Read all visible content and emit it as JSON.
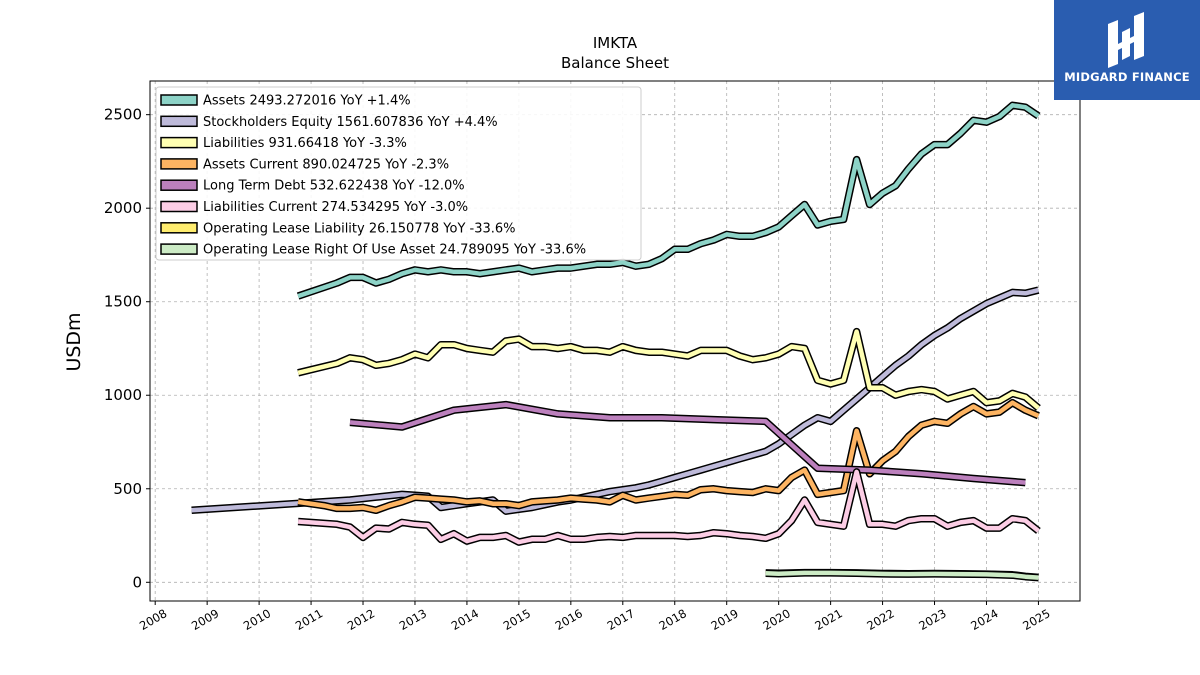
{
  "brand": {
    "name": "MIDGARD FINANCE",
    "bg_color": "#2a5db0"
  },
  "chart_data": {
    "type": "line",
    "title": "IMKTA",
    "subtitle": "Balance  Sheet",
    "xlabel": "",
    "ylabel": "USDm",
    "xlim": [
      2007.9,
      2025.8
    ],
    "ylim": [
      -100,
      2680
    ],
    "x_ticks": [
      2008,
      2009,
      2010,
      2011,
      2012,
      2013,
      2014,
      2015,
      2016,
      2017,
      2018,
      2019,
      2020,
      2021,
      2022,
      2023,
      2024,
      2025
    ],
    "y_ticks": [
      0,
      500,
      1000,
      1500,
      2000,
      2500
    ],
    "grid": true,
    "legend_position": "top-left",
    "series": [
      {
        "name": "Assets",
        "legend_label": "Assets  2493.272016 YoY +1.4%",
        "color": "#8dd3c7",
        "x": [
          2010.75,
          2011.5,
          2011.75,
          2012.0,
          2012.25,
          2012.5,
          2012.75,
          2013.0,
          2013.25,
          2013.5,
          2013.75,
          2014.0,
          2014.25,
          2014.5,
          2014.75,
          2015.0,
          2015.25,
          2015.5,
          2015.75,
          2016.0,
          2016.25,
          2016.5,
          2016.75,
          2017.0,
          2017.25,
          2017.5,
          2017.75,
          2018.0,
          2018.25,
          2018.5,
          2018.75,
          2019.0,
          2019.25,
          2019.5,
          2019.75,
          2020.0,
          2020.25,
          2020.5,
          2020.75,
          2021.0,
          2021.25,
          2021.5,
          2021.75,
          2022.0,
          2022.25,
          2022.5,
          2022.75,
          2023.0,
          2023.25,
          2023.5,
          2023.75,
          2024.0,
          2024.25,
          2024.5,
          2024.75,
          2025.0
        ],
        "y": [
          1530,
          1600,
          1630,
          1630,
          1600,
          1620,
          1650,
          1670,
          1660,
          1670,
          1660,
          1660,
          1650,
          1660,
          1670,
          1680,
          1660,
          1670,
          1680,
          1680,
          1690,
          1700,
          1700,
          1710,
          1690,
          1700,
          1730,
          1780,
          1780,
          1810,
          1830,
          1860,
          1850,
          1850,
          1870,
          1900,
          1960,
          2020,
          1910,
          1930,
          1940,
          2260,
          2020,
          2080,
          2120,
          2210,
          2290,
          2340,
          2340,
          2400,
          2470,
          2460,
          2490,
          2550,
          2540,
          2493
        ]
      },
      {
        "name": "Stockholders Equity",
        "legend_label": "Stockholders Equity  1561.607836 YoY +4.4%",
        "color": "#bebada",
        "x": [
          2008.7,
          2011.75,
          2012.25,
          2012.75,
          2013.0,
          2013.25,
          2013.5,
          2013.75,
          2014.0,
          2014.25,
          2014.5,
          2014.75,
          2015.0,
          2015.25,
          2015.5,
          2015.75,
          2016.0,
          2016.25,
          2016.5,
          2016.75,
          2017.0,
          2017.25,
          2017.5,
          2017.75,
          2018.0,
          2018.25,
          2018.5,
          2018.75,
          2019.0,
          2019.25,
          2019.5,
          2019.75,
          2020.0,
          2020.25,
          2020.5,
          2020.75,
          2021.0,
          2021.25,
          2021.5,
          2021.75,
          2022.0,
          2022.25,
          2022.5,
          2022.75,
          2023.0,
          2023.25,
          2023.5,
          2023.75,
          2024.0,
          2024.25,
          2024.5,
          2024.75,
          2025.0
        ],
        "y": [
          385,
          440,
          455,
          470,
          465,
          460,
          400,
          410,
          420,
          430,
          440,
          380,
          390,
          400,
          415,
          430,
          440,
          455,
          470,
          485,
          495,
          505,
          520,
          540,
          560,
          580,
          600,
          620,
          640,
          660,
          680,
          700,
          740,
          790,
          840,
          880,
          860,
          920,
          980,
          1040,
          1100,
          1160,
          1210,
          1270,
          1320,
          1360,
          1410,
          1450,
          1490,
          1520,
          1550,
          1545,
          1562
        ]
      },
      {
        "name": "Liabilities",
        "legend_label": "Liabilities  931.66418 YoY -3.3%",
        "color": "#ffffb3",
        "x": [
          2010.75,
          2011.5,
          2011.75,
          2012.0,
          2012.25,
          2012.5,
          2012.75,
          2013.0,
          2013.25,
          2013.5,
          2013.75,
          2014.0,
          2014.25,
          2014.5,
          2014.75,
          2015.0,
          2015.25,
          2015.5,
          2015.75,
          2016.0,
          2016.25,
          2016.5,
          2016.75,
          2017.0,
          2017.25,
          2017.5,
          2017.75,
          2018.0,
          2018.25,
          2018.5,
          2018.75,
          2019.0,
          2019.25,
          2019.5,
          2019.75,
          2020.0,
          2020.25,
          2020.5,
          2020.75,
          2021.0,
          2021.25,
          2021.5,
          2021.75,
          2022.0,
          2022.25,
          2022.5,
          2022.75,
          2023.0,
          2023.25,
          2023.5,
          2023.75,
          2024.0,
          2024.25,
          2024.5,
          2024.75,
          2025.0
        ],
        "y": [
          1120,
          1170,
          1200,
          1190,
          1160,
          1170,
          1190,
          1220,
          1200,
          1270,
          1270,
          1250,
          1240,
          1230,
          1290,
          1300,
          1260,
          1260,
          1250,
          1260,
          1240,
          1240,
          1230,
          1260,
          1240,
          1230,
          1230,
          1220,
          1210,
          1240,
          1240,
          1240,
          1210,
          1190,
          1200,
          1220,
          1260,
          1250,
          1080,
          1060,
          1080,
          1340,
          1040,
          1040,
          1000,
          1020,
          1030,
          1020,
          980,
          1000,
          1020,
          960,
          970,
          1010,
          990,
          932
        ]
      },
      {
        "name": "Assets Current",
        "legend_label": "Assets Current  890.024725 YoY -2.3%",
        "color": "#fdb462",
        "x": [
          2010.75,
          2011.25,
          2011.5,
          2011.75,
          2012.0,
          2012.25,
          2012.5,
          2012.75,
          2013.0,
          2013.25,
          2013.5,
          2013.75,
          2014.0,
          2014.25,
          2014.5,
          2014.75,
          2015.0,
          2015.25,
          2015.5,
          2015.75,
          2016.0,
          2016.25,
          2016.5,
          2016.75,
          2017.0,
          2017.25,
          2017.5,
          2017.75,
          2018.0,
          2018.25,
          2018.5,
          2018.75,
          2019.0,
          2019.25,
          2019.5,
          2019.75,
          2020.0,
          2020.25,
          2020.5,
          2020.75,
          2021.0,
          2021.25,
          2021.5,
          2021.75,
          2022.0,
          2022.25,
          2022.5,
          2022.75,
          2023.0,
          2023.25,
          2023.5,
          2023.75,
          2024.0,
          2024.25,
          2024.5,
          2024.75,
          2025.0
        ],
        "y": [
          430,
          410,
          395,
          395,
          400,
          385,
          410,
          430,
          455,
          450,
          445,
          440,
          430,
          435,
          420,
          420,
          410,
          430,
          435,
          440,
          450,
          445,
          440,
          430,
          465,
          440,
          450,
          460,
          470,
          465,
          495,
          500,
          490,
          485,
          480,
          500,
          490,
          560,
          600,
          470,
          480,
          490,
          810,
          580,
          650,
          700,
          780,
          840,
          860,
          850,
          900,
          940,
          900,
          910,
          960,
          920,
          890
        ]
      },
      {
        "name": "Long Term Debt",
        "legend_label": "Long Term Debt  532.622438 YoY -12.0%",
        "color": "#bc80bd",
        "x": [
          2011.75,
          2012.75,
          2013.75,
          2014.75,
          2015.75,
          2016.75,
          2017.75,
          2018.75,
          2019.75,
          2020.75,
          2021.75,
          2022.75,
          2023.75,
          2024.75
        ],
        "y": [
          855,
          830,
          920,
          950,
          900,
          880,
          880,
          870,
          860,
          610,
          600,
          580,
          555,
          533
        ]
      },
      {
        "name": "Liabilities Current",
        "legend_label": "Liabilities Current  274.534295 YoY -3.0%",
        "color": "#fccde5",
        "x": [
          2010.75,
          2011.5,
          2011.75,
          2012.0,
          2012.25,
          2012.5,
          2012.75,
          2013.0,
          2013.25,
          2013.5,
          2013.75,
          2014.0,
          2014.25,
          2014.5,
          2014.75,
          2015.0,
          2015.25,
          2015.5,
          2015.75,
          2016.0,
          2016.25,
          2016.5,
          2016.75,
          2017.0,
          2017.25,
          2017.5,
          2017.75,
          2018.0,
          2018.25,
          2018.5,
          2018.75,
          2019.0,
          2019.25,
          2019.5,
          2019.75,
          2020.0,
          2020.25,
          2020.5,
          2020.75,
          2021.0,
          2021.25,
          2021.5,
          2021.75,
          2022.0,
          2022.25,
          2022.5,
          2022.75,
          2023.0,
          2023.25,
          2023.5,
          2023.75,
          2024.0,
          2024.25,
          2024.5,
          2024.75,
          2025.0
        ],
        "y": [
          325,
          310,
          295,
          240,
          290,
          285,
          320,
          310,
          305,
          230,
          260,
          220,
          240,
          240,
          250,
          215,
          230,
          230,
          250,
          230,
          230,
          240,
          245,
          240,
          250,
          250,
          250,
          250,
          245,
          250,
          265,
          260,
          250,
          245,
          235,
          260,
          330,
          440,
          320,
          310,
          300,
          590,
          310,
          310,
          300,
          330,
          340,
          340,
          300,
          320,
          330,
          290,
          290,
          340,
          330,
          275
        ]
      },
      {
        "name": "Operating Lease Liability",
        "legend_label": "Operating Lease Liability  26.150778 YoY -33.6%",
        "color": "#ffed6f",
        "x": [
          2019.75,
          2020.0,
          2020.5,
          2021.0,
          2021.5,
          2022.0,
          2022.5,
          2023.0,
          2023.5,
          2024.0,
          2024.5,
          2024.75,
          2025.0
        ],
        "y": [
          50,
          48,
          52,
          52,
          50,
          47,
          46,
          47,
          46,
          44,
          40,
          32,
          26
        ]
      },
      {
        "name": "Operating Lease Right Of Use Asset",
        "legend_label": "Operating Lease Right Of Use Asset  24.789095 YoY -33.6%",
        "color": "#ccebc5",
        "x": [
          2019.75,
          2020.0,
          2020.5,
          2021.0,
          2021.5,
          2022.0,
          2022.5,
          2023.0,
          2023.5,
          2024.0,
          2024.5,
          2024.75,
          2025.0
        ],
        "y": [
          48,
          46,
          50,
          50,
          48,
          45,
          44,
          45,
          44,
          42,
          38,
          30,
          25
        ]
      }
    ]
  }
}
